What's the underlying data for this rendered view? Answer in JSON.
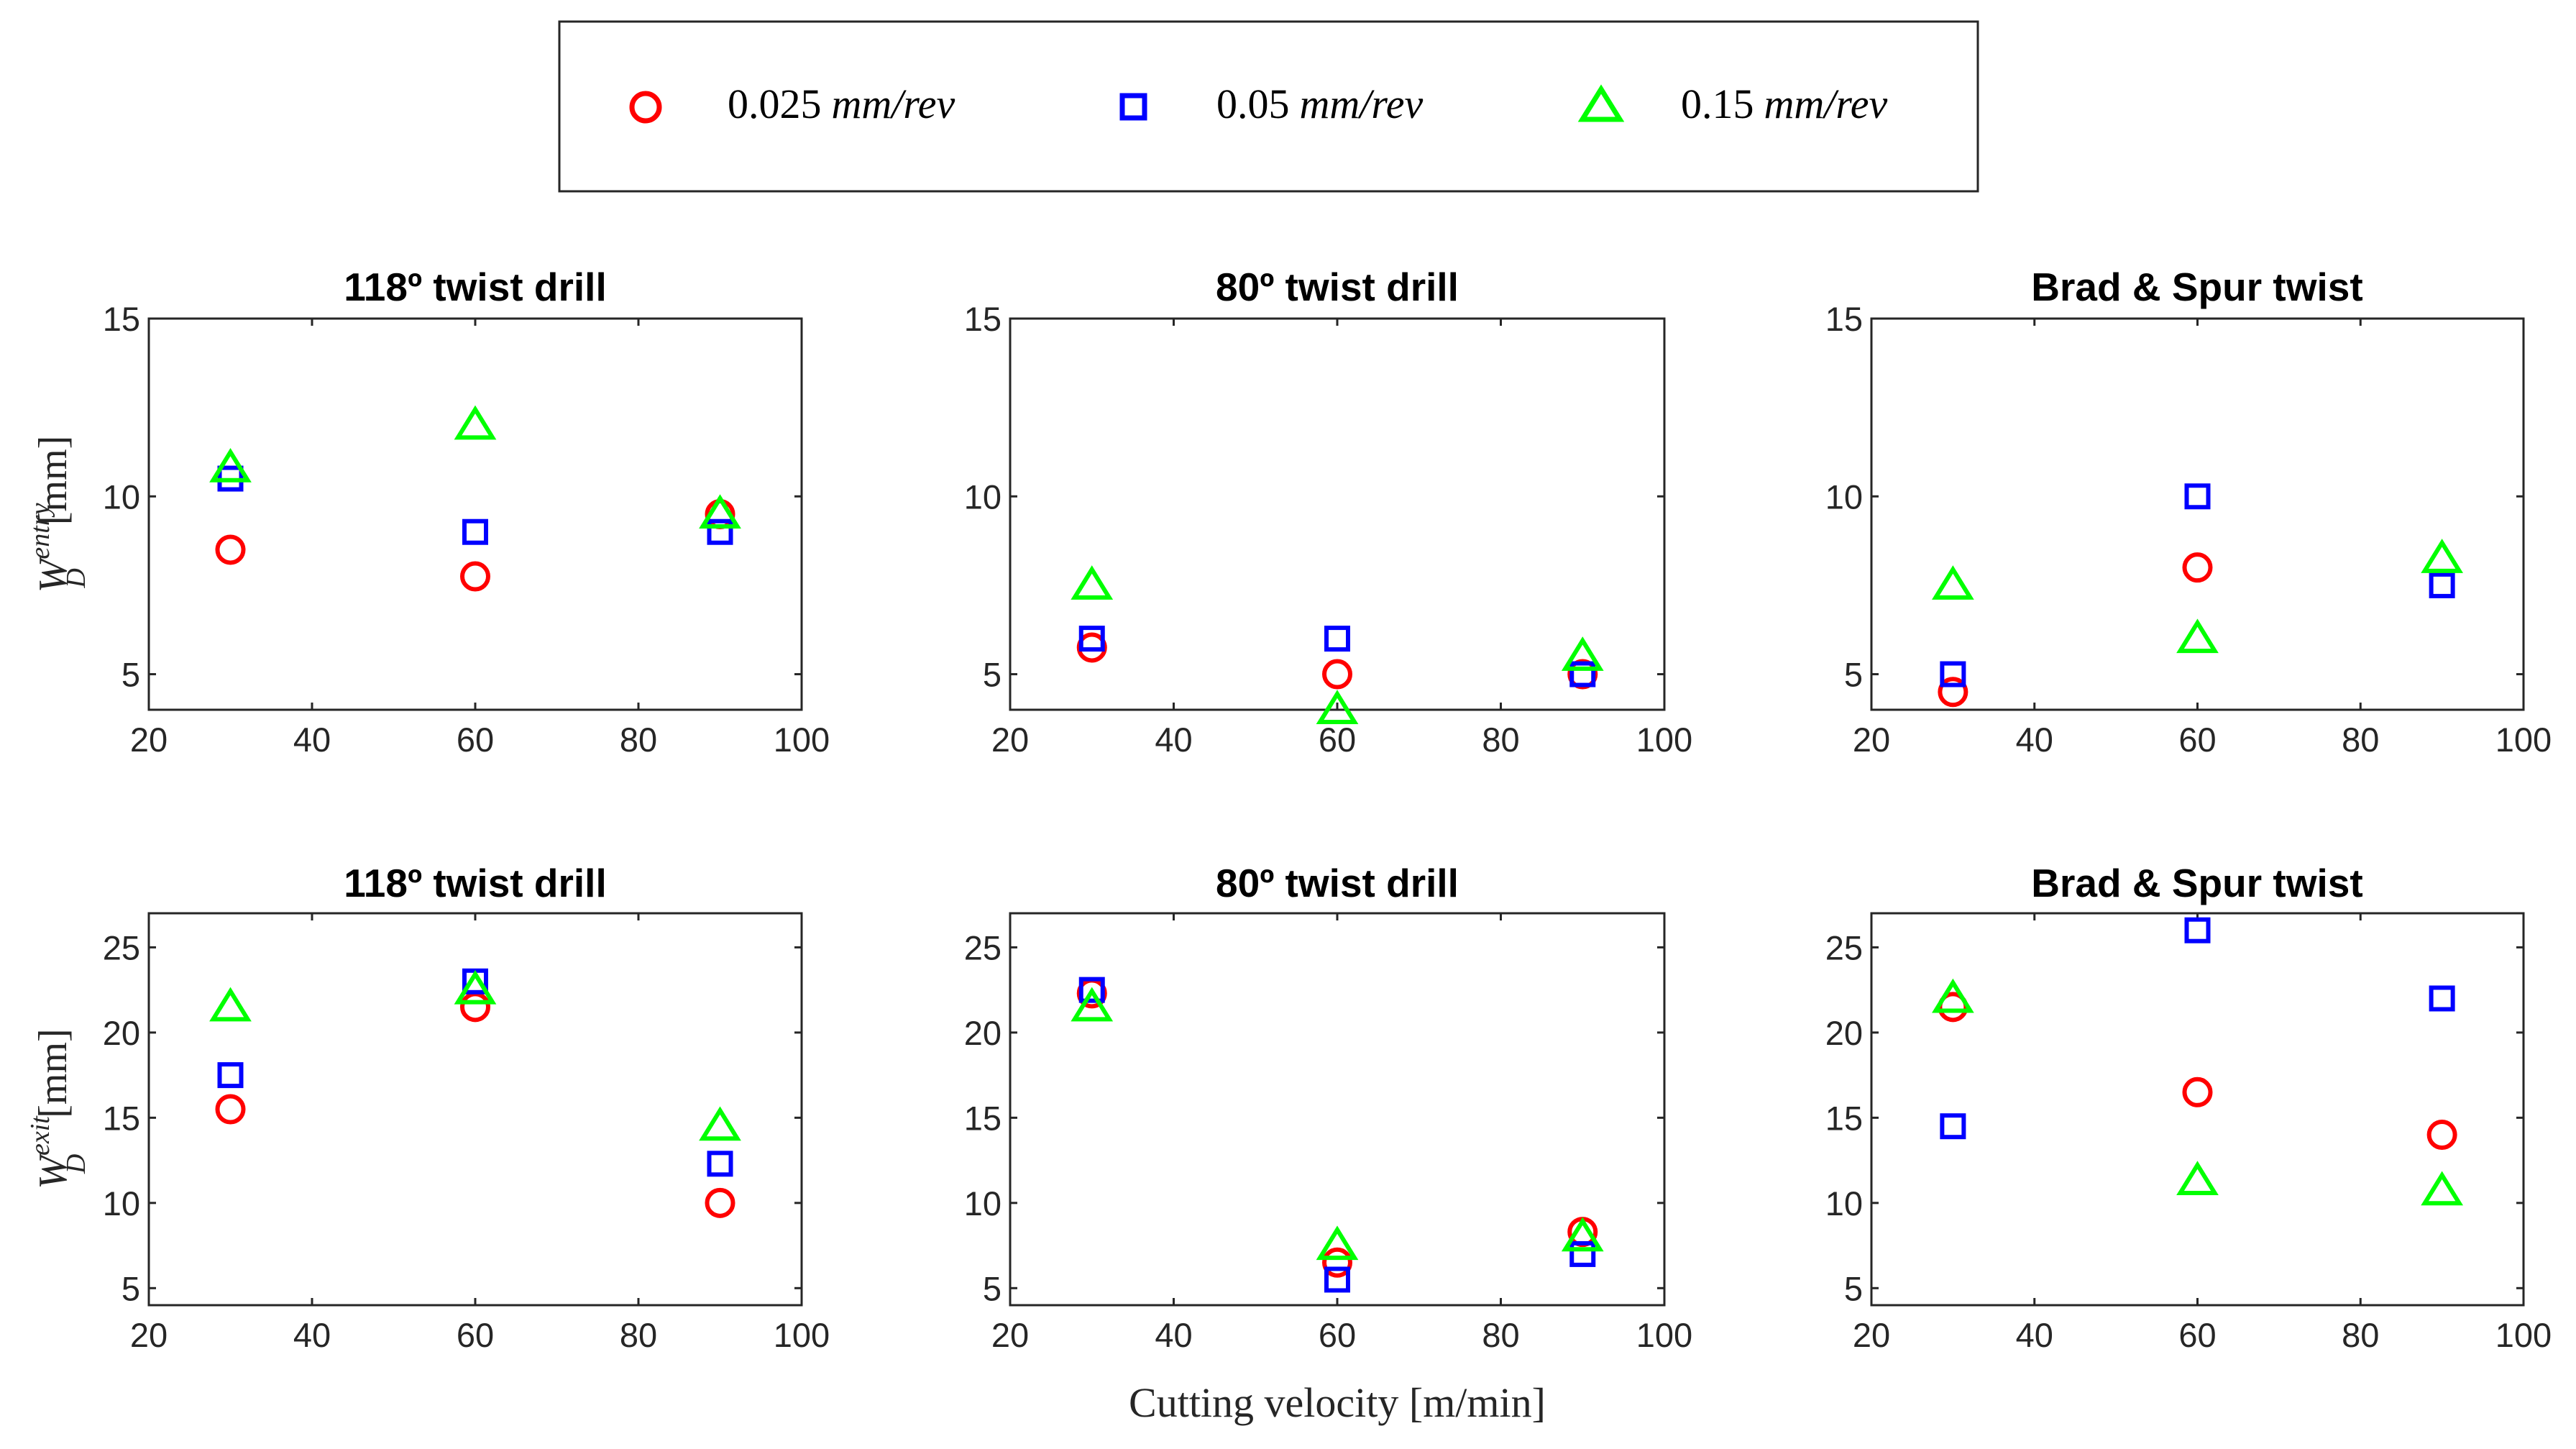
{
  "legend": {
    "items": [
      {
        "value": "0.025",
        "unit": "mm/rev",
        "marker": "circle",
        "color": "#ff0000"
      },
      {
        "value": "0.05",
        "unit": "mm/rev",
        "marker": "square",
        "color": "#0000ff"
      },
      {
        "value": "0.15",
        "unit": "mm/rev",
        "marker": "triangle",
        "color": "#00ff00"
      }
    ]
  },
  "ylabels": {
    "top": {
      "base": "W",
      "sup": "entry",
      "sub": "D",
      "unit": "[mm]"
    },
    "bottom": {
      "base": "W",
      "sup": "exit",
      "sub": "D",
      "unit": "[mm]"
    }
  },
  "xlabel": {
    "text": "Cutting velocity ",
    "unit": "[m/min]"
  },
  "chart_data": [
    {
      "type": "scatter",
      "title": "118º twist drill",
      "xlim": [
        20,
        100
      ],
      "ylim": [
        4,
        15
      ],
      "xticks": [
        20,
        40,
        60,
        80,
        100
      ],
      "yticks": [
        5,
        10,
        15
      ],
      "series": [
        {
          "name": "0.025 mm/rev",
          "x": [
            30,
            60,
            90
          ],
          "y": [
            8.5,
            7.75,
            9.5
          ]
        },
        {
          "name": "0.05 mm/rev",
          "x": [
            30,
            60,
            90
          ],
          "y": [
            10.5,
            9.0,
            9.0
          ]
        },
        {
          "name": "0.15 mm/rev",
          "x": [
            30,
            60,
            90
          ],
          "y": [
            10.8,
            12.0,
            9.5
          ]
        }
      ]
    },
    {
      "type": "scatter",
      "title": "80º twist drill",
      "xlim": [
        20,
        100
      ],
      "ylim": [
        4,
        15
      ],
      "xticks": [
        20,
        40,
        60,
        80,
        100
      ],
      "yticks": [
        5,
        10,
        15
      ],
      "series": [
        {
          "name": "0.025 mm/rev",
          "x": [
            30,
            60,
            90
          ],
          "y": [
            5.75,
            5.0,
            5.0
          ]
        },
        {
          "name": "0.05 mm/rev",
          "x": [
            30,
            60,
            90
          ],
          "y": [
            6.0,
            6.0,
            5.0
          ]
        },
        {
          "name": "0.15 mm/rev",
          "x": [
            30,
            60,
            90
          ],
          "y": [
            7.5,
            4.0,
            5.5
          ]
        }
      ]
    },
    {
      "type": "scatter",
      "title": "Brad & Spur twist",
      "xlim": [
        20,
        100
      ],
      "ylim": [
        4,
        15
      ],
      "xticks": [
        20,
        40,
        60,
        80,
        100
      ],
      "yticks": [
        5,
        10,
        15
      ],
      "series": [
        {
          "name": "0.025 mm/rev",
          "x": [
            30,
            60
          ],
          "y": [
            4.5,
            8.0
          ]
        },
        {
          "name": "0.05 mm/rev",
          "x": [
            30,
            60,
            90
          ],
          "y": [
            5.0,
            10.0,
            7.5
          ]
        },
        {
          "name": "0.15 mm/rev",
          "x": [
            30,
            60,
            90
          ],
          "y": [
            7.5,
            6.0,
            8.25
          ]
        }
      ]
    },
    {
      "type": "scatter",
      "title": "118º twist drill",
      "xlim": [
        20,
        100
      ],
      "ylim": [
        4,
        27
      ],
      "xticks": [
        20,
        40,
        60,
        80,
        100
      ],
      "yticks": [
        5,
        10,
        15,
        20,
        25
      ],
      "series": [
        {
          "name": "0.025 mm/rev",
          "x": [
            30,
            60,
            90
          ],
          "y": [
            15.5,
            21.5,
            10.0
          ]
        },
        {
          "name": "0.05 mm/rev",
          "x": [
            30,
            60,
            90
          ],
          "y": [
            17.5,
            23.0,
            12.3
          ]
        },
        {
          "name": "0.15 mm/rev",
          "x": [
            30,
            60,
            90
          ],
          "y": [
            21.5,
            22.5,
            14.5
          ]
        }
      ]
    },
    {
      "type": "scatter",
      "title": "80º twist drill",
      "xlim": [
        20,
        100
      ],
      "ylim": [
        4,
        27
      ],
      "xticks": [
        20,
        40,
        60,
        80,
        100
      ],
      "yticks": [
        5,
        10,
        15,
        20,
        25
      ],
      "series": [
        {
          "name": "0.025 mm/rev",
          "x": [
            30,
            60,
            90
          ],
          "y": [
            22.3,
            6.5,
            8.3
          ]
        },
        {
          "name": "0.05 mm/rev",
          "x": [
            30,
            60,
            90
          ],
          "y": [
            22.5,
            5.5,
            7.0
          ]
        },
        {
          "name": "0.15 mm/rev",
          "x": [
            30,
            60,
            90
          ],
          "y": [
            21.5,
            7.5,
            8.0
          ]
        }
      ]
    },
    {
      "type": "scatter",
      "title": "Brad & Spur twist",
      "xlim": [
        20,
        100
      ],
      "ylim": [
        4,
        27
      ],
      "xticks": [
        20,
        40,
        60,
        80,
        100
      ],
      "yticks": [
        5,
        10,
        15,
        20,
        25
      ],
      "series": [
        {
          "name": "0.025 mm/rev",
          "x": [
            30,
            60,
            90
          ],
          "y": [
            21.5,
            16.5,
            14.0
          ]
        },
        {
          "name": "0.05 mm/rev",
          "x": [
            30,
            60,
            90
          ],
          "y": [
            14.5,
            26.0,
            22.0
          ]
        },
        {
          "name": "0.15 mm/rev",
          "x": [
            30,
            60,
            90
          ],
          "y": [
            22.0,
            11.3,
            10.7
          ]
        }
      ]
    }
  ]
}
